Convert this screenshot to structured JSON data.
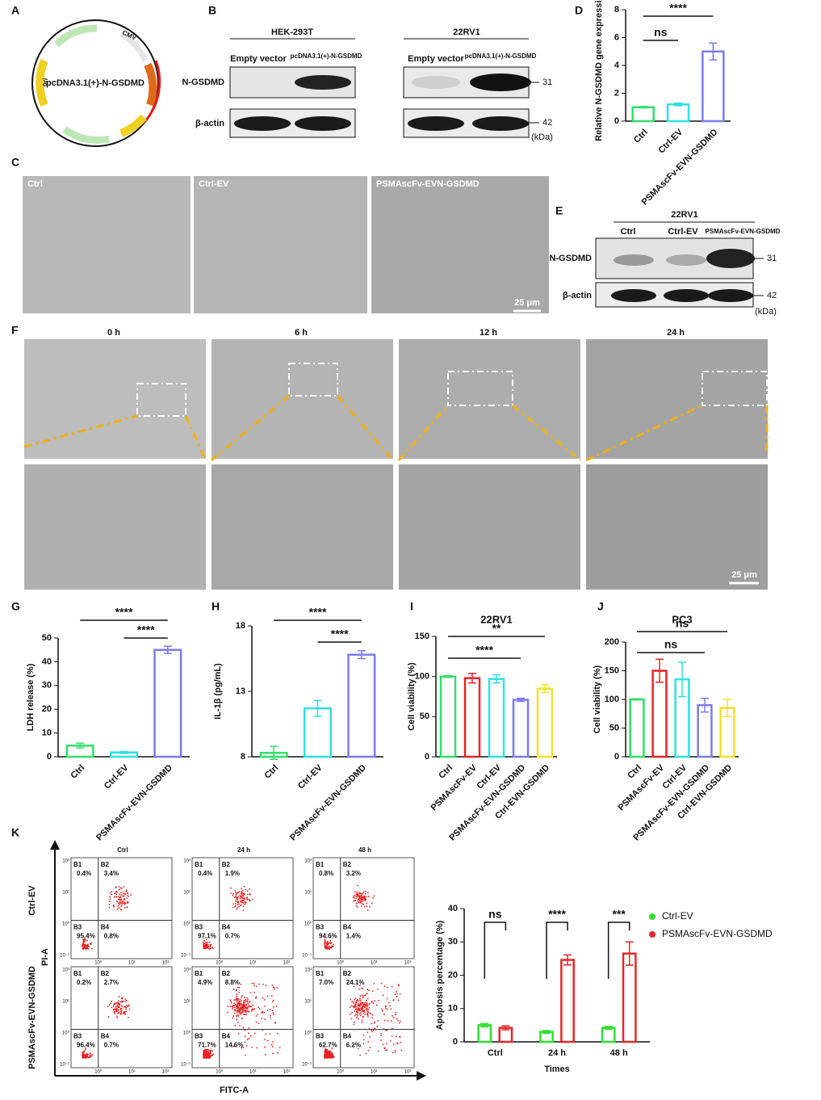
{
  "panel_letters": [
    "A",
    "B",
    "C",
    "D",
    "E",
    "F",
    "G",
    "H",
    "I",
    "J",
    "K"
  ],
  "plasmid": {
    "name": "pcDNA3.1(+)-N-GSDMD",
    "features": [
      "CMV",
      "ori"
    ]
  },
  "blot_b": {
    "cell_lines": [
      "HEK-293T",
      "22RV1"
    ],
    "lanes": [
      "Empty vector",
      "pcDNA3.1(+)-N-GSDMD"
    ],
    "proteins": [
      "N-GSDMD",
      "β-actin"
    ],
    "markers": [
      "31",
      "42"
    ],
    "unit": "(kDa)"
  },
  "micrographs_c": {
    "labels": [
      "Ctrl",
      "Ctrl-EV",
      "PSMAscFv-EVN-GSDMD"
    ],
    "scale_bar": "25 μm"
  },
  "blot_e": {
    "cell_line": "22RV1",
    "lanes": [
      "Ctrl",
      "Ctrl-EV",
      "PSMAscFv-EVN-GSDMD"
    ],
    "proteins": [
      "N-GSDMD",
      "β-actin"
    ],
    "markers": [
      "31",
      "42"
    ],
    "unit": "(kDa)"
  },
  "timecourse_f": {
    "times": [
      "0 h",
      "6 h",
      "12 h",
      "24 h"
    ],
    "scale_bar": "25 μm"
  },
  "flow_k": {
    "columns": [
      "Ctrl",
      "24 h",
      "48 h"
    ],
    "rows": [
      "Ctrl-EV",
      "PSMAscFv-EVN-GSDMD"
    ],
    "y_axis": "PI-A",
    "x_axis": "FITC-A",
    "quadrants": [
      "B1",
      "B2",
      "B3",
      "B4"
    ],
    "yticks": [
      "10³",
      "10¹",
      "10⁰",
      "10⁻¹"
    ],
    "xticks": [
      "10⁰",
      "10¹",
      "10³"
    ],
    "percentages": [
      [
        [
          "0.4%",
          "3.4%",
          "95.4%",
          "0.8%"
        ],
        [
          "0.4%",
          "1.9%",
          "97.1%",
          "0.7%"
        ],
        [
          "0.8%",
          "3.2%",
          "94.6%",
          "1.4%"
        ]
      ],
      [
        [
          "0.2%",
          "2.7%",
          "96.4%",
          "0.7%"
        ],
        [
          "4.9%",
          "8.8%",
          "71.7%",
          "14.6%"
        ],
        [
          "7.0%",
          "24.1%",
          "62.7%",
          "6.2%"
        ]
      ]
    ]
  },
  "chart_data": [
    {
      "type": "bar",
      "y_label": "Relative N-GSDMD gene expression",
      "categories": [
        "Ctrl",
        "Ctrl-EV",
        "PSMAscFv-EVN-GSDMD"
      ],
      "values": [
        1.0,
        1.2,
        5.0
      ],
      "errors": [
        0.05,
        0.1,
        0.6
      ],
      "colors": [
        "#2fe06a",
        "#30e0e0",
        "#7b7bee"
      ],
      "ylim": [
        0,
        8
      ],
      "yticks": [
        0,
        2,
        4,
        6,
        8
      ],
      "annotations": [
        "****",
        "ns"
      ]
    },
    {
      "type": "bar",
      "y_label": "LDH release (%)",
      "categories": [
        "Ctrl",
        "Ctrl-EV",
        "PSMAscFv-EVN-GSDMD"
      ],
      "values": [
        4.7,
        1.8,
        45
      ],
      "errors": [
        1,
        0.4,
        1.5
      ],
      "colors": [
        "#2fe06a",
        "#30e0e0",
        "#7b7bee"
      ],
      "ylim": [
        0,
        50
      ],
      "yticks": [
        0,
        10,
        20,
        30,
        40,
        50
      ],
      "annotations": [
        "****",
        "****"
      ]
    },
    {
      "type": "bar",
      "y_label": "IL-1β (pg/mL)",
      "categories": [
        "Ctrl",
        "Ctrl-EV",
        "PSMAscFv-EVN-GSDMD"
      ],
      "values": [
        8.3,
        11.7,
        15.8
      ],
      "errors": [
        0.5,
        0.6,
        0.3
      ],
      "colors": [
        "#2fe06a",
        "#30e0e0",
        "#7b7bee"
      ],
      "ylim": [
        8,
        18
      ],
      "yticks": [
        8,
        13,
        18
      ],
      "annotations": [
        "****",
        "****"
      ]
    },
    {
      "type": "bar",
      "title": "22RV1",
      "y_label": "Cell viability (%)",
      "categories": [
        "Ctrl",
        "PSMAscFv-EV",
        "Ctrl-EV",
        "PSMAscFv-EVN-GSDMD",
        "Ctrl-EVN-GSDMD"
      ],
      "values": [
        100,
        98,
        97,
        71,
        85
      ],
      "errors": [
        1,
        6,
        5,
        2,
        5
      ],
      "colors": [
        "#2fe06a",
        "#e8252a",
        "#30e0e0",
        "#7b7bee",
        "#f5e02a"
      ],
      "ylim": [
        0,
        150
      ],
      "yticks": [
        0,
        50,
        100,
        150
      ],
      "annotations": [
        "**",
        "****"
      ]
    },
    {
      "type": "bar",
      "title": "PC3",
      "y_label": "Cell viability (%)",
      "categories": [
        "Ctrl",
        "PSMAscFv-EV",
        "Ctrl-EV",
        "PSMAscFv-EVN-GSDMD",
        "Ctrl-EVN-GSDMD"
      ],
      "values": [
        100,
        150,
        135,
        90,
        85
      ],
      "errors": [
        1,
        20,
        30,
        12,
        15
      ],
      "colors": [
        "#2fe06a",
        "#e8252a",
        "#30e0e0",
        "#7b7bee",
        "#f5e02a"
      ],
      "ylim": [
        0,
        200
      ],
      "yticks": [
        0,
        50,
        100,
        150,
        200
      ],
      "annotations": [
        "ns",
        "ns"
      ]
    },
    {
      "type": "grouped_bar",
      "y_label": "Apoptosis percentage (%)",
      "x_label": "Times",
      "categories": [
        "Ctrl",
        "24 h",
        "48 h"
      ],
      "series": [
        {
          "name": "Ctrl-EV",
          "color": "#2fe02f",
          "values": [
            5,
            3,
            4.2
          ],
          "errors": [
            0.5,
            0.4,
            0.4
          ]
        },
        {
          "name": "PSMAscFv-EVN-GSDMD",
          "color": "#e8252a",
          "values": [
            4.2,
            24.6,
            26.5
          ],
          "errors": [
            0.6,
            1.5,
            3.5
          ]
        }
      ],
      "ylim": [
        0,
        40
      ],
      "yticks": [
        0,
        10,
        20,
        30,
        40
      ],
      "annotations": [
        "ns",
        "****",
        "***"
      ]
    }
  ]
}
